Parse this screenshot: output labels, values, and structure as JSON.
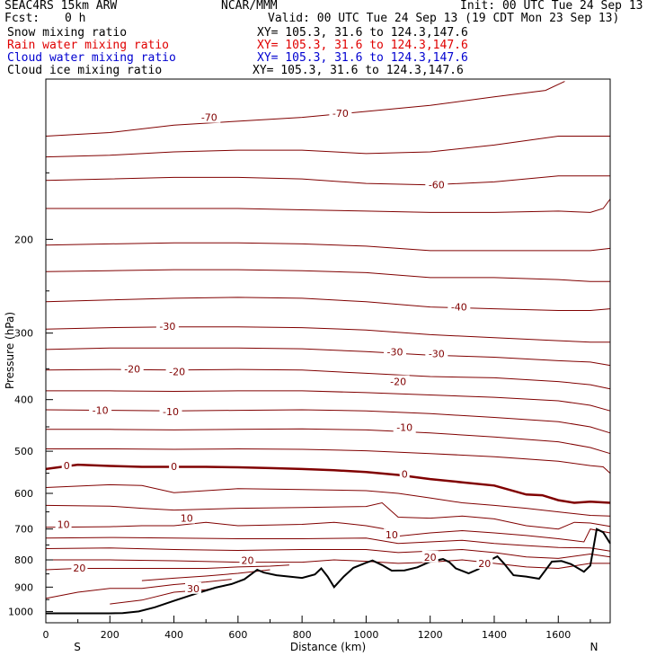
{
  "header": {
    "model": "SEAC4RS 15km ARW",
    "center": "NCAR/MMM",
    "init": "Init: 00 UTC Tue 24 Sep 13",
    "fcst_label": "Fcst:",
    "fcst_value": "0 h",
    "valid": "Valid: 00 UTC Tue 24 Sep 13 (19 CDT Mon 23 Sep 13)"
  },
  "legend": [
    {
      "name": "Snow mixing ratio",
      "xy": "XY= 105.3, 31.6 to 124.3,147.6",
      "color": "#000000"
    },
    {
      "name": "Rain water mixing ratio",
      "xy": "XY= 105.3, 31.6 to 124.3,147.6",
      "color": "#e00000"
    },
    {
      "name": "Cloud water mixing ratio",
      "xy": "XY= 105.3, 31.6 to 124.3,147.6",
      "color": "#0000d0"
    },
    {
      "name": "Cloud ice mixing ratio",
      "xy": "XY= 105.3, 31.6 to 124.3,147.6",
      "color": "#000000"
    }
  ],
  "chart_data": {
    "type": "line",
    "xlabel": "Distance (km)",
    "ylabel": "Pressure (hPa)",
    "xlim": [
      0,
      1762
    ],
    "ylim": [
      1050,
      100
    ],
    "y_scale": "log",
    "x_ticks": [
      0,
      200,
      400,
      600,
      800,
      1000,
      1200,
      1400,
      1600
    ],
    "y_ticks": [
      200,
      300,
      400,
      500,
      600,
      700,
      800,
      900,
      1000
    ],
    "x_end_labels": {
      "left": "S",
      "right": "N"
    },
    "contour_color": "#800000",
    "terrain_color": "#000000",
    "terrain": {
      "x": [
        0,
        100,
        200,
        240,
        290,
        340,
        400,
        470,
        530,
        580,
        620,
        660,
        680,
        720,
        760,
        800,
        840,
        860,
        880,
        900,
        930,
        960,
        1000,
        1020,
        1050,
        1080,
        1120,
        1160,
        1200,
        1240,
        1260,
        1280,
        1320,
        1350,
        1380,
        1410,
        1430,
        1460,
        1500,
        1540,
        1580,
        1610,
        1640,
        1680,
        1700,
        1720,
        1740,
        1762
      ],
      "y": [
        1008,
        1008,
        1008,
        1007,
        1000,
        982,
        955,
        925,
        902,
        888,
        870,
        835,
        845,
        855,
        860,
        865,
        852,
        830,
        860,
        900,
        860,
        828,
        810,
        802,
        818,
        838,
        837,
        826,
        806,
        797,
        808,
        830,
        848,
        833,
        805,
        788,
        812,
        855,
        860,
        868,
        806,
        804,
        815,
        842,
        820,
        700,
        710,
        745
      ]
    },
    "contours": [
      {
        "level": "-70",
        "x": [
          0,
          200,
          400,
          600,
          800,
          1000,
          1200,
          1400,
          1560,
          1620
        ],
        "y": [
          128,
          126,
          122,
          120,
          118,
          115,
          112,
          108,
          105,
          101
        ]
      },
      {
        "level": "-70",
        "x": [
          0,
          200,
          400,
          600,
          800,
          1000,
          1200,
          1400,
          1600,
          1700,
          1762
        ],
        "y": [
          140,
          139,
          137,
          136,
          136,
          138,
          137,
          133,
          128,
          128,
          128
        ]
      },
      {
        "level": "-60",
        "x": [
          0,
          200,
          400,
          600,
          800,
          1000,
          1200,
          1400,
          1600,
          1700,
          1762
        ],
        "y": [
          155,
          154,
          153,
          153,
          154,
          157,
          158,
          156,
          152,
          152,
          152
        ]
      },
      {
        "level": "-60",
        "x": [
          0,
          200,
          400,
          600,
          800,
          1000,
          1200,
          1400,
          1600,
          1700,
          1740,
          1762
        ],
        "y": [
          175,
          175,
          175,
          175,
          176,
          177,
          178,
          178,
          177,
          178,
          175,
          168
        ]
      },
      {
        "level": "-50",
        "x": [
          0,
          200,
          400,
          600,
          800,
          1000,
          1200,
          1400,
          1600,
          1700,
          1762
        ],
        "y": [
          205,
          204,
          203,
          203,
          204,
          206,
          210,
          210,
          210,
          210,
          208
        ]
      },
      {
        "level": "-50",
        "x": [
          0,
          200,
          400,
          600,
          800,
          1000,
          1200,
          1400,
          1600,
          1700,
          1762
        ],
        "y": [
          230,
          229,
          228,
          228,
          229,
          231,
          236,
          236,
          238,
          240,
          240
        ]
      },
      {
        "level": "-40",
        "x": [
          0,
          200,
          400,
          600,
          800,
          1000,
          1200,
          1400,
          1600,
          1700,
          1762
        ],
        "y": [
          262,
          260,
          258,
          257,
          258,
          262,
          268,
          270,
          272,
          272,
          270
        ]
      },
      {
        "level": "-30",
        "x": [
          0,
          200,
          400,
          600,
          800,
          1000,
          1200,
          1400,
          1600,
          1700,
          1762
        ],
        "y": [
          295,
          293,
          292,
          292,
          293,
          296,
          302,
          306,
          310,
          312,
          312
        ]
      },
      {
        "level": "-30",
        "x": [
          0,
          200,
          400,
          600,
          800,
          1000,
          1200,
          1400,
          1600,
          1700,
          1762
        ],
        "y": [
          322,
          320,
          320,
          320,
          321,
          325,
          330,
          333,
          338,
          340,
          345
        ]
      },
      {
        "level": "-20",
        "x": [
          0,
          200,
          400,
          600,
          800,
          1000,
          1200,
          1400,
          1600,
          1700,
          1762
        ],
        "y": [
          352,
          351,
          352,
          351,
          352,
          357,
          362,
          364,
          370,
          375,
          382
        ]
      },
      {
        "level": "-20",
        "x": [
          0,
          200,
          400,
          600,
          800,
          1000,
          1200,
          1400,
          1600,
          1700,
          1762
        ],
        "y": [
          385,
          385,
          386,
          385,
          385,
          388,
          392,
          396,
          402,
          410,
          420
        ]
      },
      {
        "level": "-10",
        "x": [
          0,
          200,
          400,
          600,
          800,
          1000,
          1200,
          1400,
          1600,
          1700,
          1762
        ],
        "y": [
          418,
          419,
          420,
          419,
          418,
          420,
          425,
          432,
          440,
          450,
          462
        ]
      },
      {
        "level": "-10",
        "x": [
          0,
          200,
          400,
          600,
          800,
          1000,
          1200,
          1400,
          1600,
          1700,
          1762
        ],
        "y": [
          455,
          455,
          456,
          455,
          454,
          456,
          462,
          470,
          480,
          492,
          505
        ]
      },
      {
        "level": "0",
        "x": [
          0,
          200,
          400,
          600,
          800,
          1000,
          1200,
          1400,
          1600,
          1700,
          1740,
          1762
        ],
        "y": [
          495,
          495,
          496,
          495,
          496,
          499,
          505,
          512,
          522,
          532,
          535,
          550
        ]
      },
      {
        "level": "0",
        "bold": true,
        "x": [
          0,
          100,
          200,
          300,
          400,
          500,
          600,
          700,
          800,
          900,
          1000,
          1100,
          1200,
          1300,
          1400,
          1500,
          1550,
          1600,
          1650,
          1700,
          1762
        ],
        "y": [
          540,
          530,
          533,
          535,
          535,
          535,
          536,
          538,
          540,
          543,
          547,
          554,
          564,
          572,
          580,
          603,
          605,
          618,
          625,
          622,
          625
        ]
      },
      {
        "level": "0",
        "x": [
          0,
          200,
          300,
          400,
          600,
          800,
          1000,
          1100,
          1200,
          1300,
          1400,
          1500,
          1600,
          1700,
          1762
        ],
        "y": [
          585,
          578,
          580,
          598,
          588,
          590,
          593,
          600,
          612,
          625,
          632,
          640,
          650,
          660,
          662
        ]
      },
      {
        "level": "10",
        "x": [
          0,
          200,
          300,
          400,
          600,
          800,
          1000,
          1050,
          1100,
          1200,
          1300,
          1400,
          1500,
          1600,
          1650,
          1700,
          1762
        ],
        "y": [
          632,
          634,
          640,
          645,
          640,
          638,
          635,
          625,
          665,
          668,
          662,
          670,
          690,
          700,
          680,
          682,
          692
        ]
      },
      {
        "level": "10",
        "x": [
          0,
          200,
          300,
          400,
          500,
          600,
          800,
          900,
          1000,
          1060,
          1100,
          1200,
          1300,
          1400,
          1500,
          1600,
          1680,
          1700,
          1762
        ],
        "y": [
          695,
          693,
          690,
          690,
          680,
          690,
          686,
          680,
          690,
          700,
          722,
          712,
          705,
          712,
          720,
          730,
          740,
          700,
          712
        ]
      },
      {
        "level": "10",
        "x": [
          0,
          200,
          400,
          600,
          800,
          1000,
          1100,
          1200,
          1300,
          1400,
          1500,
          1600,
          1700,
          1762
        ],
        "y": [
          728,
          726,
          728,
          730,
          730,
          728,
          745,
          740,
          735,
          745,
          752,
          758,
          760,
          770
        ]
      },
      {
        "level": "20",
        "x": [
          0,
          200,
          400,
          600,
          800,
          1000,
          1100,
          1200,
          1300,
          1400,
          1500,
          1600,
          1700,
          1762
        ],
        "y": [
          762,
          760,
          765,
          768,
          765,
          765,
          775,
          770,
          765,
          775,
          790,
          795,
          780,
          790
        ]
      },
      {
        "level": "20",
        "x": [
          0,
          200,
          400,
          600,
          700,
          800,
          900,
          1000,
          1100,
          1200,
          1300,
          1400,
          1500,
          1600,
          1700,
          1762
        ],
        "y": [
          800,
          800,
          803,
          808,
          808,
          808,
          800,
          805,
          812,
          808,
          800,
          812,
          825,
          830,
          812,
          812
        ]
      },
      {
        "level": "20",
        "x": [
          0,
          100,
          200,
          300,
          400,
          500,
          600,
          700,
          760
        ],
        "y": [
          835,
          830,
          830,
          830,
          830,
          830,
          825,
          822,
          818
        ]
      },
      {
        "level": "20",
        "x": [
          300,
          400,
          500,
          600,
          660,
          700
        ],
        "y": [
          875,
          866,
          858,
          848,
          840,
          835
        ]
      },
      {
        "level": "30",
        "x": [
          0,
          100,
          200,
          300,
          400,
          500,
          580
        ],
        "y": [
          945,
          920,
          905,
          905,
          890,
          880,
          870
        ]
      },
      {
        "level": "30",
        "x": [
          200,
          300,
          400,
          500,
          560
        ],
        "y": [
          968,
          952,
          920,
          910,
          895
        ]
      }
    ],
    "contour_labels": [
      {
        "text": "-70",
        "x": 510,
        "y": 118
      },
      {
        "text": "-70",
        "x": 920,
        "y": 116
      },
      {
        "text": "-60",
        "x": 1220,
        "y": 158
      },
      {
        "text": "-40",
        "x": 1290,
        "y": 268
      },
      {
        "text": "-30",
        "x": 380,
        "y": 291
      },
      {
        "text": "-30",
        "x": 1090,
        "y": 325
      },
      {
        "text": "-30",
        "x": 1220,
        "y": 328
      },
      {
        "text": "-20",
        "x": 270,
        "y": 350
      },
      {
        "text": "-20",
        "x": 410,
        "y": 354
      },
      {
        "text": "-20",
        "x": 1100,
        "y": 370
      },
      {
        "text": "-10",
        "x": 170,
        "y": 419
      },
      {
        "text": "-10",
        "x": 390,
        "y": 421
      },
      {
        "text": "-10",
        "x": 1120,
        "y": 451
      },
      {
        "text": "0",
        "x": 65,
        "y": 532
      },
      {
        "text": "0",
        "x": 400,
        "y": 534
      },
      {
        "text": "0",
        "x": 1120,
        "y": 552
      },
      {
        "text": "10",
        "x": 55,
        "y": 686
      },
      {
        "text": "10",
        "x": 440,
        "y": 668
      },
      {
        "text": "10",
        "x": 1080,
        "y": 718
      },
      {
        "text": "20",
        "x": 105,
        "y": 828
      },
      {
        "text": "20",
        "x": 630,
        "y": 802
      },
      {
        "text": "20",
        "x": 1200,
        "y": 790
      },
      {
        "text": "20",
        "x": 1370,
        "y": 812
      },
      {
        "text": "30",
        "x": 460,
        "y": 905
      }
    ]
  }
}
